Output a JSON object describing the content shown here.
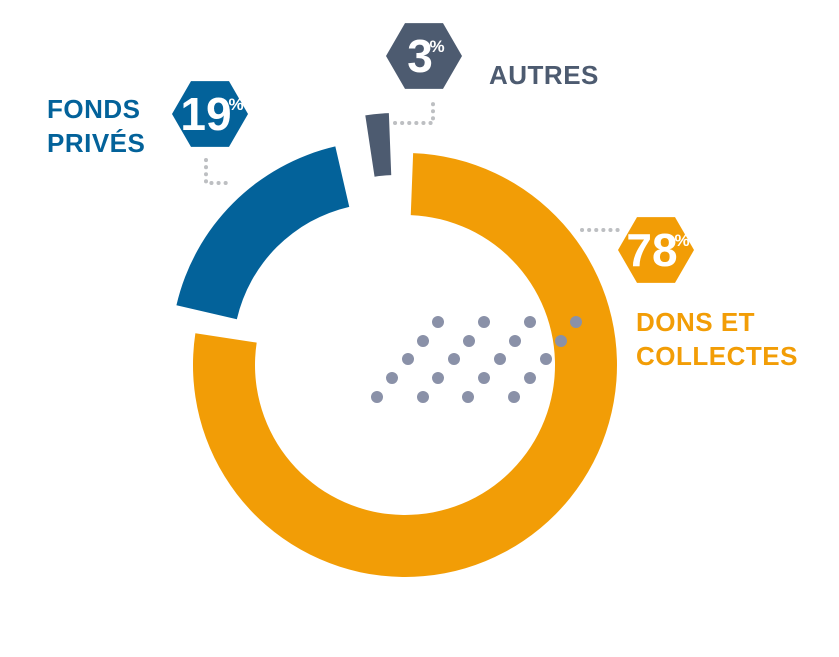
{
  "chart_data": {
    "type": "pie",
    "variant": "donut",
    "title": "",
    "slices": [
      {
        "label_lines": [
          "DONS ET",
          "COLLECTES"
        ],
        "value": 78,
        "value_text": "78",
        "percent_sign": "%",
        "color": "#F29D06"
      },
      {
        "label_lines": [
          "FONDS",
          "PRIVÉS"
        ],
        "value": 19,
        "value_text": "19",
        "percent_sign": "%",
        "color": "#03629A"
      },
      {
        "label_lines": [
          "AUTRES"
        ],
        "value": 3,
        "value_text": "3",
        "percent_sign": "%",
        "color": "#4D5B70"
      }
    ],
    "decoration": {
      "dot_color": "#8A91A8",
      "leader_color": "#BDBFC2"
    }
  }
}
